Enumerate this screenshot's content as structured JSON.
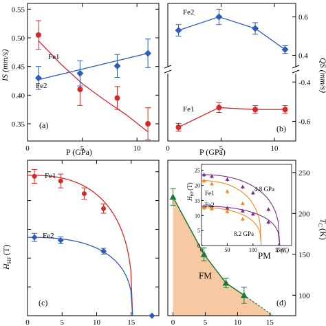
{
  "colors": {
    "red": "#d62828",
    "blue": "#2e5cb8",
    "green": "#1f7a3a",
    "purple": "#7b2d8e",
    "orange": "#f08a24",
    "fill": "#f7c9a3"
  },
  "panels": {
    "a": {
      "label": "(a)",
      "xlabel": "P (GPa)",
      "ylabel": "IS (mm/s)",
      "xticks": [
        "0",
        "5",
        "10"
      ],
      "yticks": [
        "0.35",
        "0.40",
        "0.45",
        "0.50",
        "0.55"
      ],
      "annotations": [
        "Fe1",
        "Fe2"
      ]
    },
    "b": {
      "label": "(b)",
      "xlabel": "P (GPa)",
      "ylabel": "QS (mm/s)",
      "xticks": [
        "0",
        "5",
        "10"
      ],
      "yticks_upper": [
        "0.4",
        "0.6"
      ],
      "yticks_lower": [
        "-0.4",
        "-0.6"
      ],
      "annotations": [
        "Fe2",
        "Fe1"
      ]
    },
    "c": {
      "label": "(c)",
      "ylabel_main": "H",
      "ylabel_sub": "HF",
      "ylabel_unit": "(T)",
      "xticks": [
        "0",
        "5",
        "10",
        "15"
      ],
      "yticks": [
        "0",
        "5",
        "10",
        "15",
        "20",
        "25"
      ],
      "annotations": [
        "Fe1",
        "Fe2"
      ]
    },
    "d": {
      "label": "(d)",
      "ylabel_main": "T",
      "ylabel_sub": "C",
      "ylabel_unit": "(K)",
      "xticks": [
        "0",
        "5",
        "10",
        "15"
      ],
      "yticks": [
        "100",
        "150",
        "200",
        "250"
      ],
      "annotations": [
        "FM",
        "PM"
      ],
      "inset": {
        "ylabel_main": "H",
        "ylabel_sub": "HF",
        "ylabel_unit": "(T)",
        "xlabel": "T (K)",
        "xticks": [
          "0",
          "50",
          "100",
          "150"
        ],
        "yticks": [
          "0",
          "5",
          "10",
          "15",
          "20",
          "25"
        ],
        "annotations": [
          "Fe1",
          "Fe2",
          "4.8 GPa",
          "8.2 GPa"
        ]
      }
    }
  },
  "chart_data": [
    {
      "type": "scatter",
      "panel": "a",
      "xlim": [
        0,
        12
      ],
      "ylim": [
        0.32,
        0.56
      ],
      "series": [
        {
          "name": "Fe1",
          "x": [
            1.0,
            4.8,
            8.2,
            11.0
          ],
          "values": [
            0.505,
            0.41,
            0.395,
            0.35
          ],
          "err": [
            0.025,
            0.028,
            0.02,
            0.028
          ],
          "fit": [
            [
              1.0,
              0.495
            ],
            [
              3.0,
              0.455
            ],
            [
              5.0,
              0.42
            ],
            [
              7.0,
              0.392
            ],
            [
              9.0,
              0.366
            ],
            [
              11.0,
              0.336
            ]
          ]
        },
        {
          "name": "Fe2",
          "x": [
            1.0,
            4.8,
            8.2,
            11.0
          ],
          "values": [
            0.43,
            0.438,
            0.451,
            0.473
          ],
          "err": [
            0.02,
            0.022,
            0.02,
            0.025
          ],
          "fit": [
            [
              1.0,
              0.427
            ],
            [
              11.0,
              0.473
            ]
          ]
        }
      ]
    },
    {
      "type": "line",
      "panel": "b",
      "xlim": [
        0,
        12
      ],
      "ylim": [
        -0.7,
        0.7
      ],
      "series": [
        {
          "name": "Fe2",
          "x": [
            1.0,
            4.8,
            8.2,
            11.0
          ],
          "values": [
            0.53,
            0.6,
            0.54,
            0.43
          ],
          "err": [
            0.03,
            0.04,
            0.03,
            0.02
          ]
        },
        {
          "name": "Fe1",
          "x": [
            1.0,
            4.8,
            8.2,
            11.0
          ],
          "values": [
            -0.63,
            -0.53,
            -0.54,
            -0.54
          ],
          "err": [
            0.02,
            0.025,
            0.02,
            0.02
          ]
        }
      ]
    },
    {
      "type": "scatter",
      "panel": "c",
      "xlim": [
        0,
        19
      ],
      "ylim": [
        0,
        27
      ],
      "series": [
        {
          "name": "Fe1",
          "x": [
            1.0,
            4.8,
            8.2,
            11.0,
            18.0
          ],
          "values": [
            24.2,
            23.4,
            21.2,
            18.6,
            0.0
          ],
          "err": [
            1.2,
            1.2,
            1.0,
            0.8,
            0.0
          ]
        },
        {
          "name": "Fe2",
          "x": [
            1.0,
            4.8,
            11.0
          ],
          "values": [
            13.6,
            13.1,
            11.2
          ],
          "err": [
            0.7,
            0.6,
            0.5
          ]
        }
      ],
      "critical_pressure": 15.2
    },
    {
      "type": "area",
      "panel": "d",
      "xlim": [
        -0.8,
        19
      ],
      "ylim": [
        75,
        265
      ],
      "series": [
        {
          "name": "Tc",
          "x": [
            0.0,
            4.8,
            8.2,
            11.0
          ],
          "values": [
            220,
            150,
            115,
            100
          ],
          "err": [
            10,
            8,
            6,
            10
          ]
        }
      ],
      "extrapolation": [
        [
          11.0,
          95
        ],
        [
          15.5,
          75
        ]
      ],
      "inset": {
        "xlim": [
          0,
          175
        ],
        "ylim": [
          0,
          27
        ],
        "series": [
          {
            "name": "Fe1 4.8 GPa",
            "x": [
              5,
              20,
              50,
              80,
              100,
              130
            ],
            "values": [
              23.5,
              23.0,
              22.0,
              19.5,
              17.5,
              12.0
            ]
          },
          {
            "name": "Fe1 8.2 GPa",
            "x": [
              5,
              20,
              50,
              80,
              100
            ],
            "values": [
              21.5,
              20.5,
              18.0,
              14.0,
              10.5
            ]
          },
          {
            "name": "Fe2 4.8 GPa",
            "x": [
              5,
              20,
              50,
              80,
              100,
              130
            ],
            "values": [
              13.0,
              12.8,
              12.4,
              11.5,
              10.5,
              7.8
            ]
          },
          {
            "name": "Fe2 8.2 GPa",
            "x": [
              5,
              20,
              50,
              80
            ],
            "values": [
              12.5,
              12.2,
              11.3,
              8.8
            ]
          }
        ],
        "tc": {
          "4.8 GPa": 152,
          "8.2 GPa": 116
        }
      }
    }
  ]
}
